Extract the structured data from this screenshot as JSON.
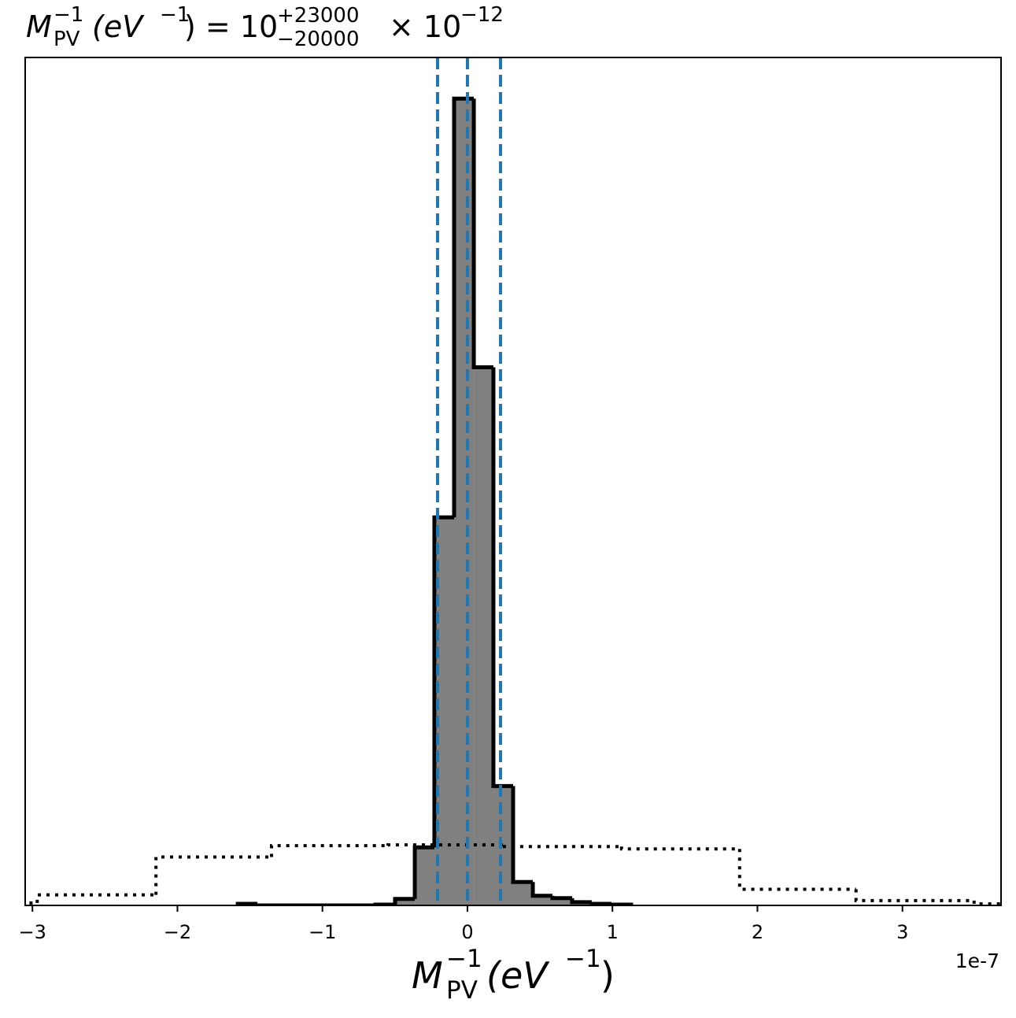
{
  "chart_data": {
    "type": "histogram",
    "title": [
      "M",
      "−1",
      "PV",
      "(eV",
      "−1",
      ") = 10",
      "+23000",
      "−20000",
      "× 10",
      "−12"
    ],
    "x_label": [
      "M",
      "−1",
      "PV",
      "(eV",
      "−1",
      ")"
    ],
    "x_offset_label": "1e-7",
    "xlim": [
      -3.05,
      3.68
    ],
    "ylim": [
      0,
      105.1
    ],
    "xticks": [
      {
        "value": -3,
        "label": "−3"
      },
      {
        "value": -2,
        "label": "−2"
      },
      {
        "value": -1,
        "label": "−1"
      },
      0,
      1,
      2,
      3
    ],
    "series": [
      {
        "style": "solid",
        "color": "#808080",
        "edgecolor": "#000000",
        "bins": [
          -1.584,
          -1.448,
          -1.313,
          -1.177,
          -1.041,
          -0.906,
          -0.77,
          -0.634,
          -0.499,
          -0.363,
          -0.228,
          -0.092,
          0.044,
          0.179,
          0.315,
          0.451,
          0.586,
          0.722,
          0.857,
          0.993,
          1.129
        ],
        "values": [
          0.2,
          0,
          0,
          0,
          0,
          0,
          0,
          0.1,
          0.8,
          7.2,
          48.1,
          100,
          66.7,
          14.8,
          2.9,
          1.2,
          0.9,
          0.4,
          0.2,
          0.1
        ]
      },
      {
        "style": "dotted",
        "edgecolor": "#000000",
        "bins": [
          -3.78,
          -2.967,
          -2.148,
          -1.351,
          -0.548,
          0.255,
          1.063,
          1.877,
          2.68,
          3.494,
          4.3
        ],
        "values": [
          0.3,
          1.3,
          6.0,
          7.4,
          7.5,
          7.3,
          7.0,
          2.0,
          0.6,
          0.2
        ]
      }
    ],
    "vlines": {
      "values": [
        -0.206,
        0,
        0.228
      ],
      "color": "#1f77b4"
    }
  }
}
